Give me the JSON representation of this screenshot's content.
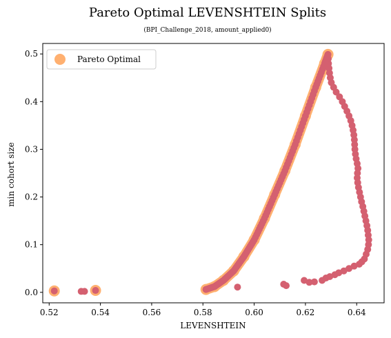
{
  "chart_data": {
    "type": "scatter",
    "title": "Pareto Optimal LEVENSHTEIN Splits",
    "subtitle": "(BPI_Challenge_2018, amount_applied0)",
    "xlabel": "LEVENSHTEIN",
    "ylabel": "min cohort size",
    "xlim": [
      0.5175,
      0.6507
    ],
    "ylim": [
      -0.022,
      0.522
    ],
    "xticks": [
      "0.52",
      "0.54",
      "0.56",
      "0.58",
      "0.60",
      "0.62",
      "0.64"
    ],
    "xtick_values": [
      0.52,
      0.54,
      0.56,
      0.58,
      0.6,
      0.62,
      0.64
    ],
    "yticks": [
      "0.0",
      "0.1",
      "0.2",
      "0.3",
      "0.4",
      "0.5"
    ],
    "ytick_values": [
      0.0,
      0.1,
      0.2,
      0.3,
      0.4,
      0.5
    ],
    "grid": false,
    "legend": {
      "position": "top-left",
      "entries": [
        "Pareto Optimal"
      ]
    },
    "colors": {
      "pareto": "#ffb070",
      "all_splits": "#d46070"
    },
    "pareto_points": [
      [
        0.522,
        0.003
      ],
      [
        0.5381,
        0.004
      ],
      [
        0.5812,
        0.006
      ],
      [
        0.5845,
        0.012
      ],
      [
        0.588,
        0.025
      ],
      [
        0.592,
        0.045
      ],
      [
        0.596,
        0.075
      ],
      [
        0.6,
        0.11
      ],
      [
        0.604,
        0.155
      ],
      [
        0.608,
        0.205
      ],
      [
        0.612,
        0.255
      ],
      [
        0.616,
        0.31
      ],
      [
        0.62,
        0.37
      ],
      [
        0.624,
        0.43
      ],
      [
        0.6275,
        0.48
      ],
      [
        0.6288,
        0.499
      ]
    ],
    "series_points": [
      [
        0.522,
        0.003
      ],
      [
        0.5325,
        0.002
      ],
      [
        0.5338,
        0.002
      ],
      [
        0.5381,
        0.004
      ],
      [
        0.5812,
        0.006
      ],
      [
        0.5845,
        0.012
      ],
      [
        0.5935,
        0.011
      ],
      [
        0.6115,
        0.017
      ],
      [
        0.6125,
        0.014
      ],
      [
        0.6195,
        0.025
      ],
      [
        0.6215,
        0.021
      ],
      [
        0.6235,
        0.022
      ],
      [
        0.6265,
        0.025
      ],
      [
        0.628,
        0.03
      ],
      [
        0.6295,
        0.033
      ],
      [
        0.6315,
        0.037
      ],
      [
        0.633,
        0.041
      ],
      [
        0.635,
        0.045
      ],
      [
        0.637,
        0.05
      ],
      [
        0.639,
        0.055
      ],
      [
        0.641,
        0.059
      ],
      [
        0.642,
        0.064
      ],
      [
        0.643,
        0.07
      ],
      [
        0.6437,
        0.08
      ],
      [
        0.6443,
        0.09
      ],
      [
        0.6446,
        0.1
      ],
      [
        0.6447,
        0.11
      ],
      [
        0.6445,
        0.12
      ],
      [
        0.6443,
        0.13
      ],
      [
        0.644,
        0.14
      ],
      [
        0.6436,
        0.15
      ],
      [
        0.6432,
        0.16
      ],
      [
        0.6428,
        0.17
      ],
      [
        0.6424,
        0.18
      ],
      [
        0.6419,
        0.19
      ],
      [
        0.6415,
        0.2
      ],
      [
        0.6411,
        0.21
      ],
      [
        0.6407,
        0.22
      ],
      [
        0.6404,
        0.23
      ],
      [
        0.6402,
        0.24
      ],
      [
        0.6403,
        0.25
      ],
      [
        0.6405,
        0.26
      ],
      [
        0.6402,
        0.27
      ],
      [
        0.6398,
        0.28
      ],
      [
        0.6395,
        0.29
      ],
      [
        0.6393,
        0.3
      ],
      [
        0.6392,
        0.31
      ],
      [
        0.6391,
        0.32
      ],
      [
        0.6389,
        0.33
      ],
      [
        0.6386,
        0.34
      ],
      [
        0.6382,
        0.35
      ],
      [
        0.6377,
        0.36
      ],
      [
        0.637,
        0.37
      ],
      [
        0.6362,
        0.38
      ],
      [
        0.6353,
        0.39
      ],
      [
        0.6344,
        0.4
      ],
      [
        0.6333,
        0.41
      ],
      [
        0.632,
        0.42
      ],
      [
        0.631,
        0.43
      ],
      [
        0.6301,
        0.44
      ],
      [
        0.6297,
        0.45
      ],
      [
        0.6294,
        0.46
      ],
      [
        0.6292,
        0.47
      ],
      [
        0.629,
        0.48
      ],
      [
        0.6289,
        0.49
      ],
      [
        0.6288,
        0.499
      ]
    ]
  }
}
